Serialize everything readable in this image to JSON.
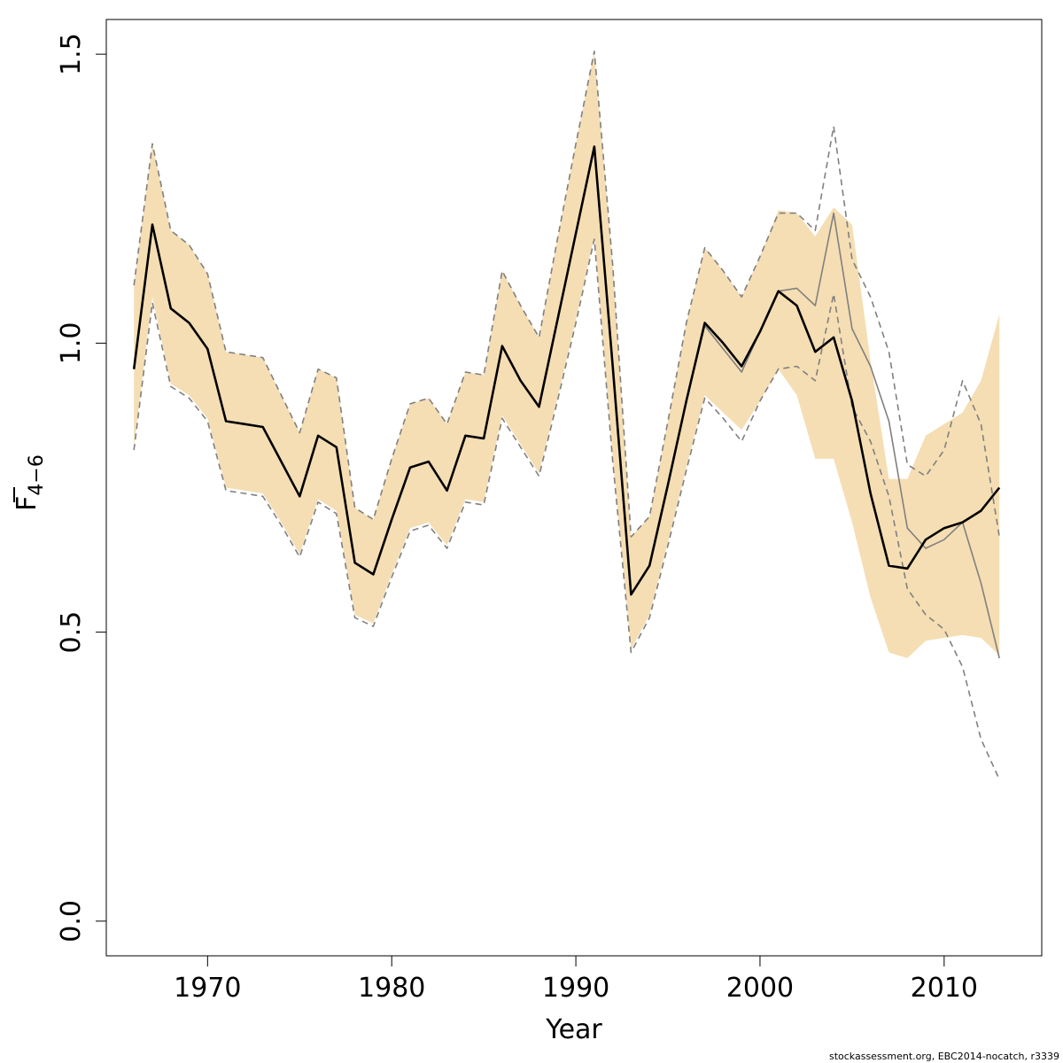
{
  "chart_data": {
    "type": "line",
    "xlabel": "Year",
    "ylabel_main": "F",
    "ylabel_sub": "4−6",
    "xlim": [
      1964.5,
      2015.3
    ],
    "ylim": [
      -0.06,
      1.56
    ],
    "x_ticks": [
      1970,
      1980,
      1990,
      2000,
      2010
    ],
    "y_ticks": [
      0.0,
      0.5,
      1.0,
      1.5
    ],
    "x_tick_labels": [
      "1970",
      "1980",
      "1990",
      "2000",
      "2010"
    ],
    "y_tick_labels": [
      "0.0",
      "0.5",
      "1.0",
      "1.5"
    ],
    "grid": false,
    "colors": {
      "band": "#f5deb3",
      "current_line": "#000000",
      "previous_line": "#808080",
      "previous_ci": "#808080"
    },
    "band": {
      "years": [
        1966,
        1967,
        1968,
        1969,
        1970,
        1971,
        1972,
        1973,
        1974,
        1975,
        1976,
        1977,
        1978,
        1979,
        1980,
        1981,
        1982,
        1983,
        1984,
        1985,
        1986,
        1987,
        1988,
        1989,
        1990,
        1991,
        1992,
        1993,
        1994,
        1995,
        1996,
        1997,
        1998,
        1999,
        2000,
        2001,
        2002,
        2003,
        2004,
        2005,
        2006,
        2007,
        2008,
        2009,
        2010,
        2011,
        2012,
        2013
      ],
      "lower": [
        0.82,
        1.08,
        0.93,
        0.91,
        0.87,
        0.75,
        0.745,
        0.74,
        0.69,
        0.635,
        0.73,
        0.71,
        0.53,
        0.515,
        0.6,
        0.68,
        0.69,
        0.65,
        0.73,
        0.725,
        0.875,
        0.825,
        0.775,
        0.905,
        1.04,
        1.185,
        0.8,
        0.47,
        0.53,
        0.655,
        0.785,
        0.91,
        0.88,
        0.85,
        0.9,
        0.955,
        0.91,
        0.8,
        0.8,
        0.69,
        0.56,
        0.465,
        0.455,
        0.485,
        0.49,
        0.495,
        0.49,
        0.46
      ],
      "upper": [
        1.1,
        1.345,
        1.195,
        1.17,
        1.12,
        0.985,
        0.98,
        0.975,
        0.91,
        0.845,
        0.955,
        0.94,
        0.715,
        0.695,
        0.8,
        0.895,
        0.905,
        0.86,
        0.95,
        0.945,
        1.125,
        1.065,
        1.01,
        1.18,
        1.345,
        1.505,
        1.135,
        0.665,
        0.7,
        0.865,
        1.035,
        1.165,
        1.125,
        1.08,
        1.15,
        1.23,
        1.225,
        1.185,
        1.235,
        1.205,
        0.97,
        0.765,
        0.765,
        0.84,
        0.86,
        0.88,
        0.935,
        1.05
      ]
    },
    "series": [
      {
        "years": [
          1966,
          1967,
          1968,
          1969,
          1970,
          1971,
          1972,
          1973,
          1974,
          1975,
          1976,
          1977,
          1978,
          1979,
          1980,
          1981,
          1982,
          1983,
          1984,
          1985,
          1986,
          1987,
          1988,
          1989,
          1990,
          1991,
          1992,
          1993,
          1994,
          1995,
          1996,
          1997,
          1998,
          1999,
          2000,
          2001,
          2002,
          2003,
          2004,
          2005,
          2006,
          2007,
          2008,
          2009,
          2010,
          2011,
          2012,
          2013
        ],
        "values": [
          0.955,
          1.205,
          1.06,
          1.035,
          0.99,
          0.865,
          0.86,
          0.855,
          0.795,
          0.735,
          0.84,
          0.82,
          0.62,
          0.6,
          0.695,
          0.785,
          0.795,
          0.745,
          0.84,
          0.835,
          0.995,
          0.935,
          0.89,
          1.04,
          1.19,
          1.34,
          0.96,
          0.565,
          0.615,
          0.755,
          0.9,
          1.035,
          1.0,
          0.96,
          1.02,
          1.09,
          1.065,
          0.985,
          1.01,
          0.9,
          0.74,
          0.615,
          0.61,
          0.66,
          0.68,
          0.69,
          0.71,
          0.75
        ],
        "style": "solid-thick"
      },
      {
        "years": [
          1966,
          1967,
          1968,
          1969,
          1970,
          1971,
          1972,
          1973,
          1974,
          1975,
          1976,
          1977,
          1978,
          1979,
          1980,
          1981,
          1982,
          1983,
          1984,
          1985,
          1986,
          1987,
          1988,
          1989,
          1990,
          1991,
          1992,
          1993,
          1994,
          1995,
          1996,
          1997,
          1998,
          1999,
          2000,
          2001,
          2002,
          2003,
          2004,
          2005,
          2006,
          2007,
          2008,
          2009,
          2010,
          2011,
          2012,
          2013
        ],
        "values": [
          0.955,
          1.205,
          1.06,
          1.035,
          0.99,
          0.865,
          0.86,
          0.855,
          0.795,
          0.735,
          0.84,
          0.82,
          0.62,
          0.6,
          0.695,
          0.785,
          0.795,
          0.745,
          0.84,
          0.835,
          0.995,
          0.935,
          0.89,
          1.04,
          1.19,
          1.34,
          0.96,
          0.565,
          0.615,
          0.755,
          0.9,
          1.03,
          0.99,
          0.95,
          1.02,
          1.09,
          1.095,
          1.065,
          1.225,
          1.025,
          0.96,
          0.865,
          0.68,
          0.645,
          0.66,
          0.69,
          0.585,
          0.455
        ],
        "style": "solid-grey"
      },
      {
        "years": [
          1966,
          1967,
          1968,
          1969,
          1970,
          1971,
          1972,
          1973,
          1974,
          1975,
          1976,
          1977,
          1978,
          1979,
          1980,
          1981,
          1982,
          1983,
          1984,
          1985,
          1986,
          1987,
          1988,
          1989,
          1990,
          1991,
          1992,
          1993,
          1994,
          1995,
          1996,
          1997,
          1998,
          1999,
          2000,
          2001,
          2002,
          2003,
          2004,
          2005,
          2006,
          2007,
          2008,
          2009,
          2010,
          2011,
          2012,
          2013
        ],
        "values": [
          0.815,
          1.07,
          0.925,
          0.905,
          0.865,
          0.745,
          0.74,
          0.735,
          0.685,
          0.63,
          0.725,
          0.705,
          0.525,
          0.51,
          0.595,
          0.675,
          0.685,
          0.645,
          0.725,
          0.72,
          0.87,
          0.82,
          0.77,
          0.9,
          1.035,
          1.18,
          0.795,
          0.465,
          0.525,
          0.65,
          0.78,
          0.905,
          0.87,
          0.83,
          0.9,
          0.955,
          0.96,
          0.935,
          1.085,
          0.89,
          0.83,
          0.735,
          0.575,
          0.53,
          0.505,
          0.44,
          0.315,
          0.245
        ],
        "style": "dashed-grey"
      },
      {
        "years": [
          1966,
          1967,
          1968,
          1969,
          1970,
          1971,
          1972,
          1973,
          1974,
          1975,
          1976,
          1977,
          1978,
          1979,
          1980,
          1981,
          1982,
          1983,
          1984,
          1985,
          1986,
          1987,
          1988,
          1989,
          1990,
          1991,
          1992,
          1993,
          1994,
          1995,
          1996,
          1997,
          1998,
          1999,
          2000,
          2001,
          2002,
          2003,
          2004,
          2005,
          2006,
          2007,
          2008,
          2009,
          2010,
          2011,
          2012,
          2013
        ],
        "values": [
          1.1,
          1.345,
          1.195,
          1.17,
          1.12,
          0.985,
          0.98,
          0.975,
          0.91,
          0.845,
          0.955,
          0.94,
          0.715,
          0.695,
          0.8,
          0.895,
          0.905,
          0.86,
          0.95,
          0.945,
          1.125,
          1.065,
          1.01,
          1.18,
          1.345,
          1.505,
          1.135,
          0.665,
          0.7,
          0.865,
          1.035,
          1.165,
          1.125,
          1.08,
          1.15,
          1.225,
          1.225,
          1.195,
          1.375,
          1.145,
          1.08,
          0.985,
          0.79,
          0.77,
          0.815,
          0.935,
          0.86,
          0.665
        ],
        "style": "dashed-grey"
      }
    ]
  },
  "footer": "stockassessment.org, EBC2014-nocatch, r3339"
}
